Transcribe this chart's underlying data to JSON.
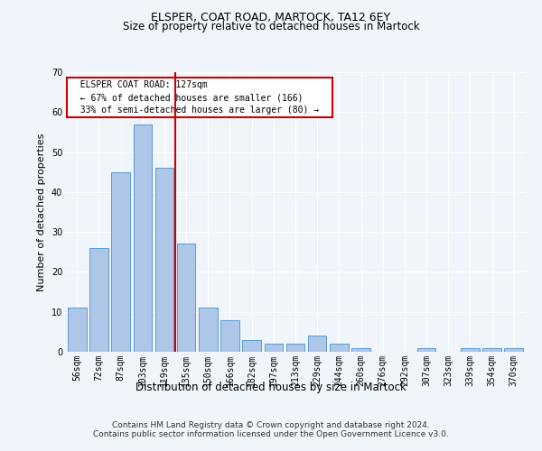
{
  "title1": "ELSPER, COAT ROAD, MARTOCK, TA12 6EY",
  "title2": "Size of property relative to detached houses in Martock",
  "xlabel": "Distribution of detached houses by size in Martock",
  "ylabel": "Number of detached properties",
  "categories": [
    "56sqm",
    "72sqm",
    "87sqm",
    "103sqm",
    "119sqm",
    "135sqm",
    "150sqm",
    "166sqm",
    "182sqm",
    "197sqm",
    "213sqm",
    "229sqm",
    "244sqm",
    "260sqm",
    "276sqm",
    "292sqm",
    "307sqm",
    "323sqm",
    "339sqm",
    "354sqm",
    "370sqm"
  ],
  "values": [
    11,
    26,
    45,
    57,
    46,
    27,
    11,
    8,
    3,
    2,
    2,
    4,
    2,
    1,
    0,
    0,
    1,
    0,
    1,
    1,
    1
  ],
  "bar_color": "#aec6e8",
  "bar_edge_color": "#5b9bd5",
  "red_line_index": 4,
  "ylim": [
    0,
    70
  ],
  "yticks": [
    0,
    10,
    20,
    30,
    40,
    50,
    60,
    70
  ],
  "annotation_title": "ELSPER COAT ROAD: 127sqm",
  "annotation_line1": "← 67% of detached houses are smaller (166)",
  "annotation_line2": "33% of semi-detached houses are larger (80) →",
  "footer1": "Contains HM Land Registry data © Crown copyright and database right 2024.",
  "footer2": "Contains public sector information licensed under the Open Government Licence v3.0.",
  "bg_color": "#f0f4fb",
  "plot_bg_color": "#f0f4fb",
  "grid_color": "#ffffff",
  "annotation_box_color": "#ffffff",
  "annotation_box_edge": "#cc0000",
  "red_line_color": "#cc0000",
  "title1_fontsize": 9,
  "title2_fontsize": 8.5,
  "xlabel_fontsize": 8.5,
  "ylabel_fontsize": 8,
  "tick_fontsize": 7,
  "annotation_fontsize": 7,
  "footer_fontsize": 6.5
}
